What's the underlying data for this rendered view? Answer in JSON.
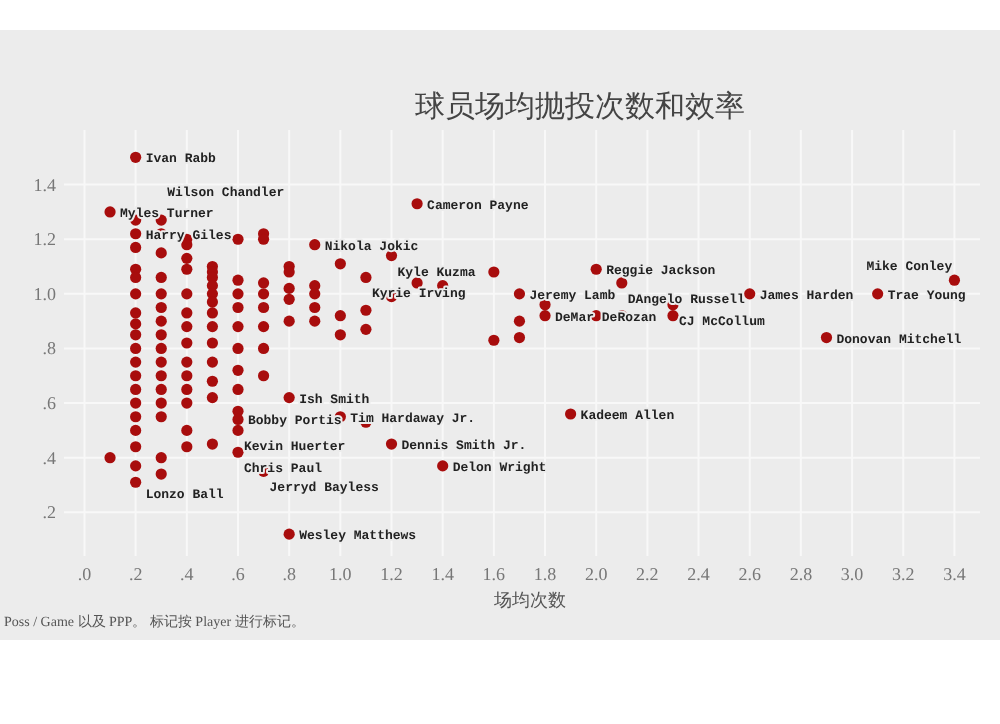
{
  "chart_data": {
    "type": "scatter",
    "title": "球员场均抛投次数和效率",
    "xlabel": "场均次数",
    "color": "#a80d0d",
    "marker": "circle",
    "grid": true,
    "xlim": [
      -0.08,
      3.5
    ],
    "ylim": [
      0.04,
      1.6
    ],
    "xticks": [
      {
        "value": 0,
        "label": ".0"
      },
      {
        "value": 0.2,
        "label": ".2"
      },
      {
        "value": 0.4,
        "label": ".4"
      },
      {
        "value": 0.6,
        "label": ".6"
      },
      {
        "value": 0.8,
        "label": ".8"
      },
      {
        "value": 1,
        "label": "1.0"
      },
      {
        "value": 1.2,
        "label": "1.2"
      },
      {
        "value": 1.4,
        "label": "1.4"
      },
      {
        "value": 1.6,
        "label": "1.6"
      },
      {
        "value": 1.8,
        "label": "1.8"
      },
      {
        "value": 2,
        "label": "2.0"
      },
      {
        "value": 2.2,
        "label": "2.2"
      },
      {
        "value": 2.4,
        "label": "2.4"
      },
      {
        "value": 2.6,
        "label": "2.6"
      },
      {
        "value": 2.8,
        "label": "2.8"
      },
      {
        "value": 3,
        "label": "3.0"
      },
      {
        "value": 3.2,
        "label": "3.2"
      },
      {
        "value": 3.4,
        "label": "3.4"
      }
    ],
    "yticks": [
      {
        "value": 0.2,
        "label": ".2"
      },
      {
        "value": 0.4,
        "label": ".4"
      },
      {
        "value": 0.6,
        "label": ".6"
      },
      {
        "value": 0.8,
        "label": ".8"
      },
      {
        "value": 1,
        "label": "1.0"
      },
      {
        "value": 1.2,
        "label": "1.2"
      },
      {
        "value": 1.4,
        "label": "1.4"
      }
    ],
    "x": [
      0.1,
      0.1,
      0.2,
      0.2,
      0.2,
      0.2,
      0.2,
      0.2,
      0.2,
      0.2,
      0.2,
      0.2,
      0.2,
      0.2,
      0.2,
      0.2,
      0.2,
      0.2,
      0.2,
      0.2,
      0.2,
      0.2,
      0.3,
      0.3,
      0.3,
      0.3,
      0.3,
      0.3,
      0.3,
      0.3,
      0.3,
      0.3,
      0.3,
      0.3,
      0.3,
      0.3,
      0.3,
      0.3,
      0.4,
      0.4,
      0.4,
      0.4,
      0.4,
      0.4,
      0.4,
      0.4,
      0.4,
      0.4,
      0.4,
      0.4,
      0.4,
      0.4,
      0.5,
      0.5,
      0.5,
      0.5,
      0.5,
      0.5,
      0.5,
      0.5,
      0.5,
      0.5,
      0.5,
      0.5,
      0.5,
      0.6,
      0.6,
      0.6,
      0.6,
      0.6,
      0.6,
      0.6,
      0.6,
      0.6,
      0.6,
      0.6,
      0.6,
      0.7,
      0.7,
      0.7,
      0.7,
      0.7,
      0.7,
      0.7,
      0.7,
      0.7,
      0.8,
      0.8,
      0.8,
      0.8,
      0.8,
      0.8,
      0.8,
      0.9,
      0.9,
      0.9,
      0.9,
      0.9,
      1.0,
      1.0,
      1.0,
      1.0,
      1.1,
      1.1,
      1.1,
      1.1,
      1.2,
      1.2,
      1.2,
      1.3,
      1.3,
      1.4,
      1.4,
      1.6,
      1.6,
      1.7,
      1.7,
      1.7,
      1.8,
      1.8,
      1.9,
      2.0,
      2.0,
      2.1,
      2.1,
      2.3,
      2.3,
      2.6,
      2.9,
      3.1,
      3.4
    ],
    "values": [
      1.3,
      0.4,
      1.5,
      1.27,
      1.22,
      1.17,
      1.09,
      1.06,
      1.0,
      0.93,
      0.89,
      0.85,
      0.8,
      0.75,
      0.7,
      0.65,
      0.6,
      0.55,
      0.5,
      0.44,
      0.37,
      0.31,
      1.27,
      1.22,
      1.15,
      1.06,
      1.0,
      0.95,
      0.9,
      0.85,
      0.8,
      0.75,
      0.7,
      0.65,
      0.6,
      0.55,
      0.4,
      0.34,
      1.2,
      1.18,
      1.13,
      1.09,
      1.0,
      0.93,
      0.88,
      0.82,
      0.75,
      0.7,
      0.65,
      0.6,
      0.5,
      0.44,
      1.1,
      1.08,
      1.06,
      1.03,
      1.0,
      0.97,
      0.93,
      0.88,
      0.82,
      0.75,
      0.68,
      0.62,
      0.45,
      1.2,
      1.05,
      1.0,
      0.95,
      0.88,
      0.8,
      0.72,
      0.65,
      0.57,
      0.54,
      0.5,
      0.42,
      1.22,
      1.2,
      1.04,
      1.0,
      0.95,
      0.88,
      0.8,
      0.7,
      0.35,
      1.1,
      1.08,
      1.02,
      0.98,
      0.9,
      0.62,
      0.12,
      1.18,
      1.03,
      1.0,
      0.95,
      0.9,
      1.11,
      0.92,
      0.85,
      0.55,
      1.06,
      0.94,
      0.87,
      0.53,
      1.14,
      0.99,
      0.45,
      1.33,
      1.04,
      1.03,
      0.37,
      1.08,
      0.83,
      1.0,
      0.9,
      0.84,
      0.96,
      0.92,
      0.56,
      1.09,
      0.92,
      1.04,
      0.92,
      0.96,
      0.92,
      1.0,
      0.84,
      1.0,
      1.05
    ],
    "annotations": [
      {
        "text": "Ivan Rabb",
        "x": 0.2,
        "y": 1.5
      },
      {
        "text": "Myles Turner",
        "x": 0.1,
        "y": 1.3
      },
      {
        "text": "Harry Giles",
        "x": 0.2,
        "y": 1.22
      },
      {
        "text": "Wilson Chandler",
        "x": 0.3,
        "y": 1.27
      },
      {
        "text": "Nikola Jokic",
        "x": 0.9,
        "y": 1.18
      },
      {
        "text": "Cameron Payne",
        "x": 1.3,
        "y": 1.33
      },
      {
        "text": "Kyle Kuzma",
        "x": 1.2,
        "y": 1.14
      },
      {
        "text": "Kyrie Irving",
        "x": 1.1,
        "y": 1.06
      },
      {
        "text": "Reggie Jackson",
        "x": 2.0,
        "y": 1.09
      },
      {
        "text": "DAngelo Russell",
        "x": 2.1,
        "y": 1.04
      },
      {
        "text": "Jeremy Lamb",
        "x": 1.7,
        "y": 1.0
      },
      {
        "text": "CJ McCollum",
        "x": 2.3,
        "y": 0.96
      },
      {
        "text": "James Harden",
        "x": 2.6,
        "y": 1.0
      },
      {
        "text": "Trae Young",
        "x": 3.1,
        "y": 1.0
      },
      {
        "text": "Mike Conley",
        "x": 3.4,
        "y": 1.05
      },
      {
        "text": "DeMar DeRozan",
        "x": 1.8,
        "y": 0.92
      },
      {
        "text": "Donovan Mitchell",
        "x": 2.9,
        "y": 0.84
      },
      {
        "text": "Kadeem Allen",
        "x": 1.9,
        "y": 0.56
      },
      {
        "text": "Ish Smith",
        "x": 0.8,
        "y": 0.62
      },
      {
        "text": "Bobby Portis",
        "x": 0.6,
        "y": 0.54
      },
      {
        "text": "Tim Hardaway Jr.",
        "x": 1.0,
        "y": 0.55
      },
      {
        "text": "Kevin Huerter",
        "x": 0.6,
        "y": 0.5
      },
      {
        "text": "Chris Paul",
        "x": 0.6,
        "y": 0.42
      },
      {
        "text": "Dennis Smith Jr.",
        "x": 1.2,
        "y": 0.45
      },
      {
        "text": "Delon Wright",
        "x": 1.4,
        "y": 0.37
      },
      {
        "text": "Jerryd Bayless",
        "x": 0.7,
        "y": 0.35
      },
      {
        "text": "Lonzo Ball",
        "x": 0.2,
        "y": 0.27
      },
      {
        "text": "Wesley Matthews",
        "x": 0.8,
        "y": 0.12
      },
      "Poss / Game 以及 PPP。 标记按 Player 进行标记。"
    ]
  }
}
